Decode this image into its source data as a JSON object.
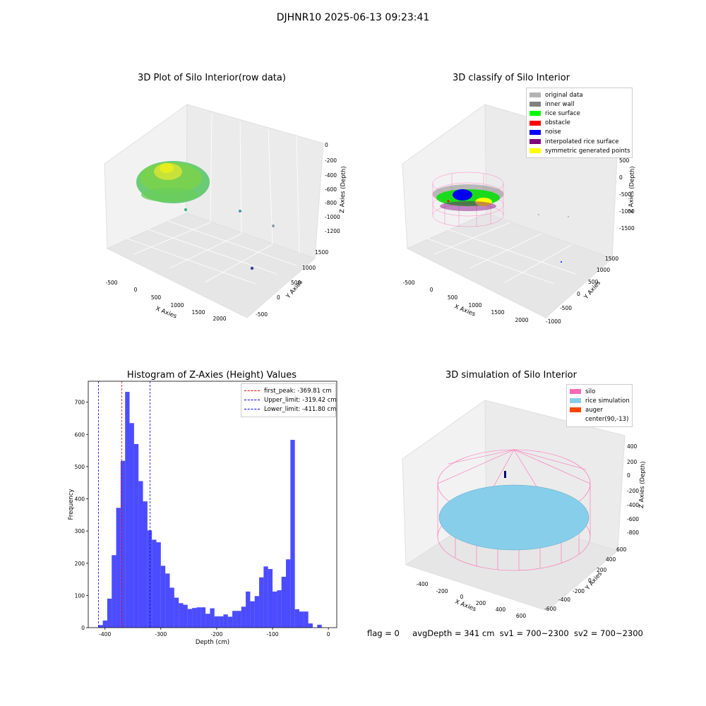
{
  "figure": {
    "suptitle": "DJHNR10 2025-06-13 09:23:41"
  },
  "panels": {
    "raw": {
      "title": "3D Plot of Silo Interior(row data)",
      "xlabel": "X Axies",
      "ylabel": "Y Axies",
      "zlabel": "Z Axies (Depth)",
      "xticks": [
        "-500",
        "0",
        "500",
        "1000",
        "1500",
        "2000"
      ],
      "yticks": [
        "-500",
        "0",
        "500",
        "1000",
        "1500"
      ],
      "zticks": [
        "0",
        "-200",
        "-400",
        "-600",
        "-800",
        "-1000",
        "-1200"
      ]
    },
    "classify": {
      "title": "3D classify of Silo Interior",
      "xlabel": "X Axies",
      "ylabel": "Y Axies",
      "zlabel": "Z Axies (Depth)",
      "xticks": [
        "-500",
        "0",
        "500",
        "1000",
        "1500",
        "2000"
      ],
      "yticks": [
        "-1000",
        "-500",
        "0",
        "500",
        "1000",
        "1500"
      ],
      "zticks": [
        "1000",
        "500",
        "0",
        "-500",
        "-1000",
        "-1500"
      ],
      "legend": [
        {
          "label": "original data",
          "color": "#b3b3b3"
        },
        {
          "label": "inner wall",
          "color": "#808080"
        },
        {
          "label": "rice surface",
          "color": "#00ff00"
        },
        {
          "label": "obstacle",
          "color": "#ff0000"
        },
        {
          "label": "noise",
          "color": "#0000ff"
        },
        {
          "label": "interpolated rice surface",
          "color": "#800080"
        },
        {
          "label": "symmetric generated points",
          "color": "#ffff00"
        }
      ]
    },
    "simulation": {
      "title": "3D simulation of Silo Interior",
      "xlabel": "X Axies",
      "ylabel": "Y Axies",
      "zlabel": "Z Axies (Depth)",
      "xticks": [
        "-400",
        "-200",
        "0",
        "200",
        "400",
        "600"
      ],
      "yticks": [
        "600",
        "400",
        "200",
        "0",
        "-200",
        "-400",
        "-600"
      ],
      "zticks": [
        "400",
        "200",
        "0",
        "-200",
        "-400",
        "-600",
        "-800"
      ],
      "legend": [
        {
          "label": "silo",
          "color": "#ff69b4"
        },
        {
          "label": "rice simulation",
          "color": "#87ceeb"
        },
        {
          "label": "auger",
          "color": "#ff4500"
        },
        {
          "label": "center(90,-13)",
          "color": "#ffffff"
        }
      ]
    }
  },
  "chart_data": [
    {
      "type": "bar",
      "title": "Histogram of Z-Axies (Height) Values",
      "xlabel": "Depth (cm)",
      "ylabel": "Frequency",
      "xlim": [
        -430,
        15
      ],
      "ylim": [
        0,
        765
      ],
      "xticks": [
        -400,
        -300,
        -200,
        -100,
        0
      ],
      "yticks": [
        0,
        100,
        200,
        300,
        400,
        500,
        600,
        700
      ],
      "bin_width": 8,
      "bins": [
        {
          "x": -412,
          "y": 8
        },
        {
          "x": -404,
          "y": 22
        },
        {
          "x": -396,
          "y": 90
        },
        {
          "x": -388,
          "y": 225
        },
        {
          "x": -380,
          "y": 372
        },
        {
          "x": -372,
          "y": 518
        },
        {
          "x": -364,
          "y": 732
        },
        {
          "x": -356,
          "y": 635
        },
        {
          "x": -348,
          "y": 570
        },
        {
          "x": -340,
          "y": 455
        },
        {
          "x": -332,
          "y": 392
        },
        {
          "x": -324,
          "y": 302
        },
        {
          "x": -316,
          "y": 273
        },
        {
          "x": -308,
          "y": 265
        },
        {
          "x": -300,
          "y": 192
        },
        {
          "x": -292,
          "y": 168
        },
        {
          "x": -284,
          "y": 124
        },
        {
          "x": -276,
          "y": 93
        },
        {
          "x": -268,
          "y": 76
        },
        {
          "x": -260,
          "y": 71
        },
        {
          "x": -252,
          "y": 58
        },
        {
          "x": -244,
          "y": 61
        },
        {
          "x": -236,
          "y": 63
        },
        {
          "x": -228,
          "y": 63
        },
        {
          "x": -220,
          "y": 43
        },
        {
          "x": -212,
          "y": 60
        },
        {
          "x": -204,
          "y": 35
        },
        {
          "x": -196,
          "y": 35
        },
        {
          "x": -188,
          "y": 41
        },
        {
          "x": -180,
          "y": 34
        },
        {
          "x": -172,
          "y": 52
        },
        {
          "x": -164,
          "y": 52
        },
        {
          "x": -156,
          "y": 65
        },
        {
          "x": -148,
          "y": 112
        },
        {
          "x": -140,
          "y": 82
        },
        {
          "x": -132,
          "y": 98
        },
        {
          "x": -124,
          "y": 156
        },
        {
          "x": -116,
          "y": 190
        },
        {
          "x": -108,
          "y": 182
        },
        {
          "x": -100,
          "y": 112
        },
        {
          "x": -92,
          "y": 116
        },
        {
          "x": -84,
          "y": 158
        },
        {
          "x": -76,
          "y": 212
        },
        {
          "x": -68,
          "y": 583
        },
        {
          "x": -60,
          "y": 57
        },
        {
          "x": -52,
          "y": 50
        },
        {
          "x": -44,
          "y": 50
        },
        {
          "x": -36,
          "y": 13
        },
        {
          "x": -28,
          "y": 0
        },
        {
          "x": -20,
          "y": 9
        }
      ],
      "color": "#0000ff",
      "reference_lines": [
        {
          "label": "first_peak: -369.81 cm",
          "x": -369.81,
          "color": "#ff0000"
        },
        {
          "label": "Upper_limit: -319.42 cm",
          "x": -319.42,
          "color": "#0000ff"
        },
        {
          "label": "Lower_limit: -411.80 cm",
          "x": -411.8,
          "color": "#0000ff"
        }
      ],
      "legend_position": "top-right"
    }
  ],
  "footer": {
    "flag": "flag = 0",
    "avg": "avgDepth = 341 cm",
    "sv1": "sv1 = 700~2300",
    "sv2": "sv2 = 700~2300"
  }
}
